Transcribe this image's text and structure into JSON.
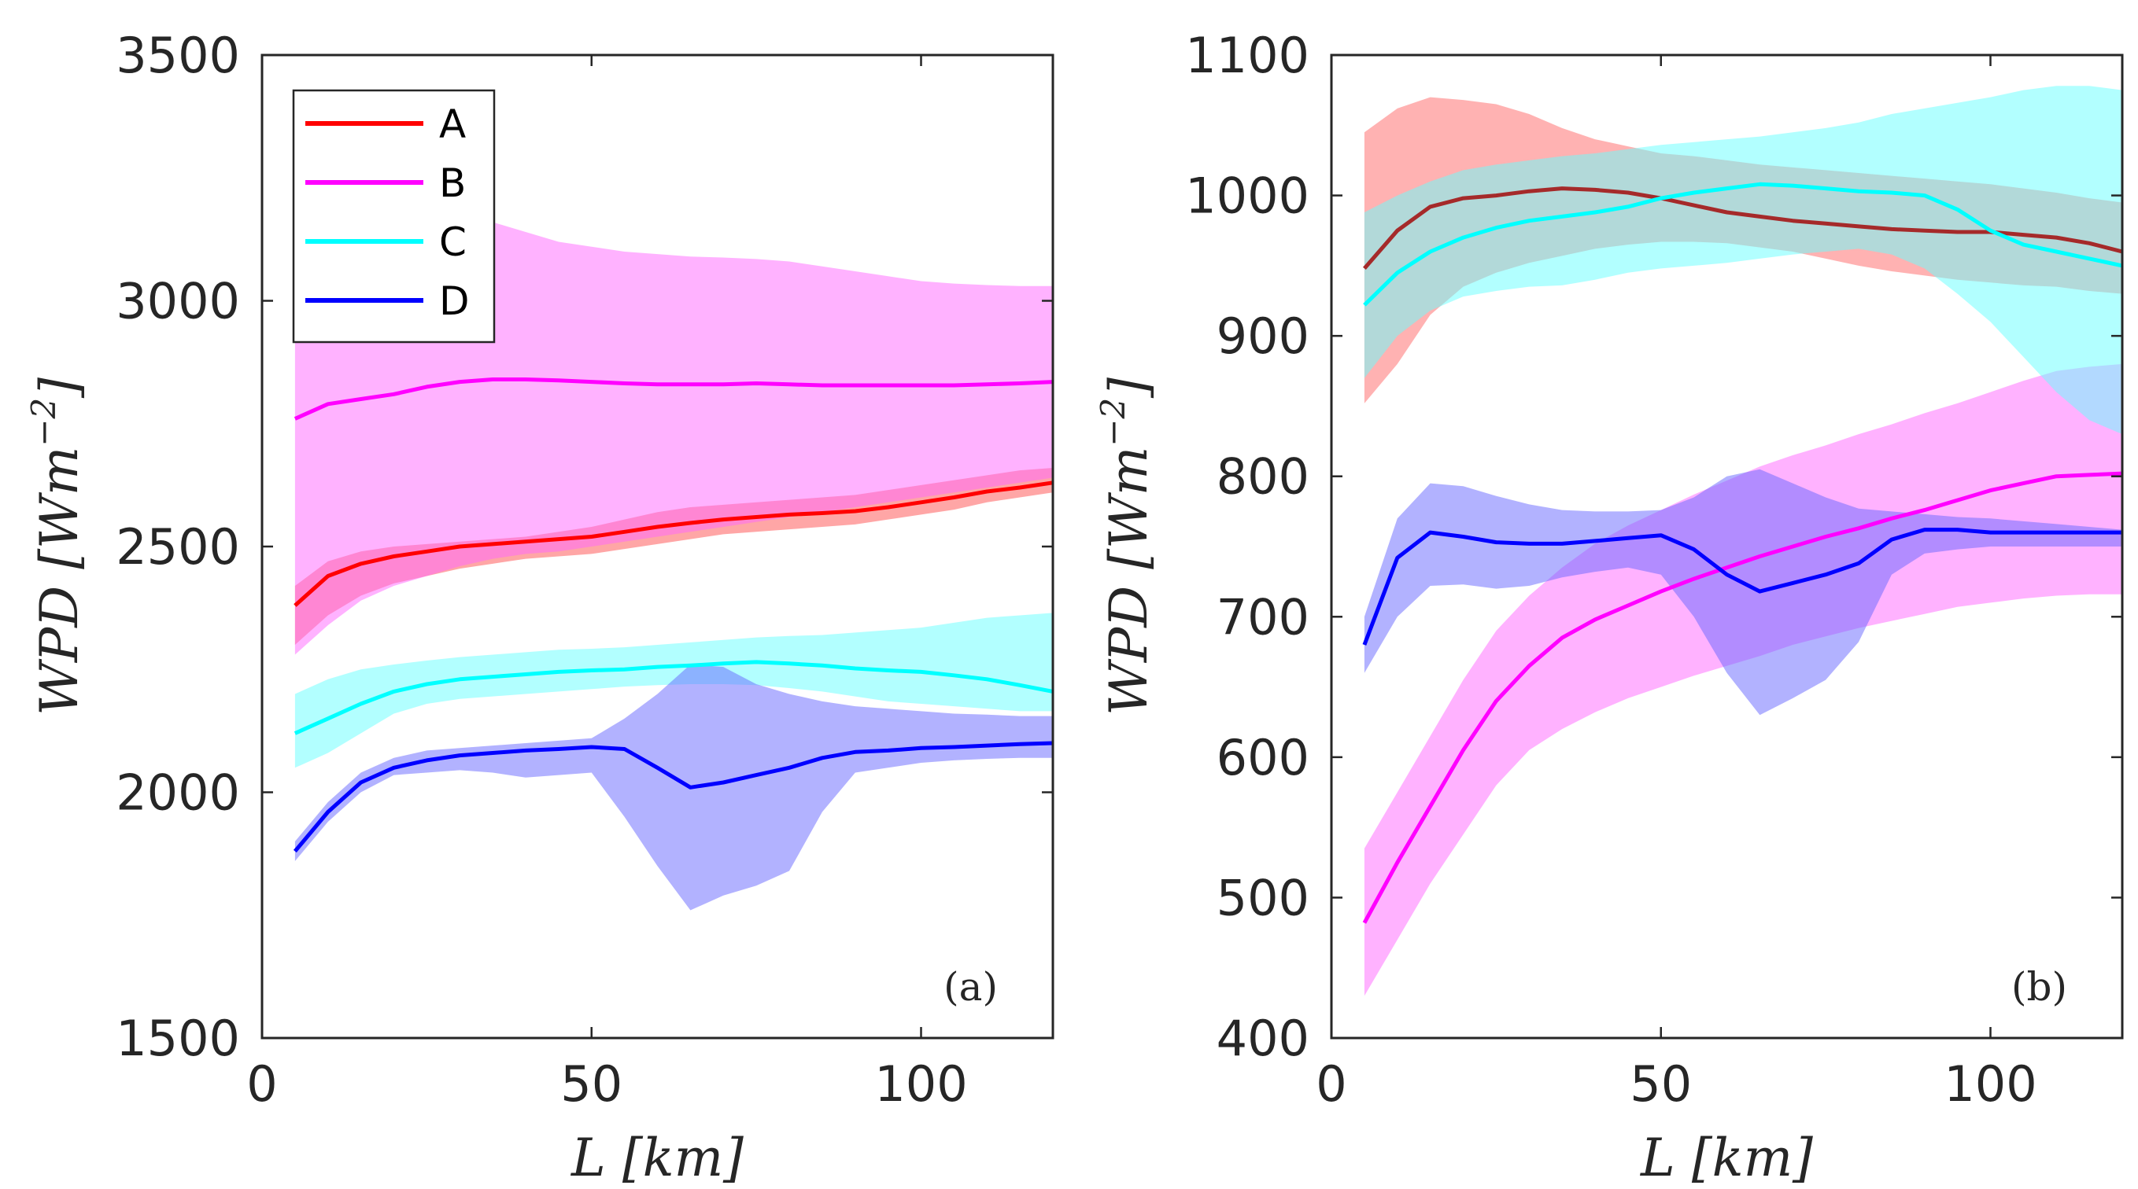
{
  "chart_data": [
    {
      "type": "area",
      "panel": "(a)",
      "xlabel": "L [km]",
      "ylabel": "WPD [Wm^-2]",
      "ylabel_parts": [
        "WPD [Wm",
        "−2",
        "]"
      ],
      "xlabel_parts": [
        "L [km]"
      ],
      "xlim": [
        0,
        120
      ],
      "ylim": [
        1500,
        3500
      ],
      "xticks": [
        0,
        50,
        100
      ],
      "xtick_labels": [
        "0",
        "50",
        "100"
      ],
      "yticks": [
        1500,
        2000,
        2500,
        3000,
        3500
      ],
      "ytick_labels": [
        "1500",
        "2000",
        "2500",
        "3000",
        "3500"
      ],
      "legend": {
        "position": "top-left",
        "entries": [
          "A",
          "B",
          "C",
          "D"
        ]
      },
      "x": [
        5,
        10,
        15,
        20,
        25,
        30,
        35,
        40,
        45,
        50,
        55,
        60,
        65,
        70,
        75,
        80,
        85,
        90,
        95,
        100,
        105,
        110,
        115,
        120
      ],
      "series": [
        {
          "name": "A",
          "color": "#ff0000",
          "band_color": "#ff4d4d",
          "values": [
            2380,
            2440,
            2465,
            2480,
            2490,
            2500,
            2505,
            2510,
            2515,
            2520,
            2530,
            2540,
            2548,
            2555,
            2560,
            2565,
            2568,
            2572,
            2580,
            2590,
            2600,
            2612,
            2620,
            2630
          ],
          "lower": [
            2300,
            2360,
            2400,
            2425,
            2440,
            2455,
            2465,
            2475,
            2480,
            2485,
            2495,
            2505,
            2515,
            2525,
            2530,
            2535,
            2540,
            2545,
            2555,
            2565,
            2575,
            2590,
            2600,
            2610
          ],
          "upper": [
            2420,
            2470,
            2490,
            2500,
            2505,
            2510,
            2515,
            2520,
            2530,
            2540,
            2555,
            2570,
            2580,
            2585,
            2590,
            2595,
            2600,
            2605,
            2615,
            2625,
            2635,
            2645,
            2655,
            2660
          ]
        },
        {
          "name": "B",
          "color": "#ff00ff",
          "band_color": "#ff66ff",
          "values": [
            2760,
            2790,
            2800,
            2810,
            2825,
            2835,
            2840,
            2840,
            2838,
            2835,
            2832,
            2830,
            2830,
            2830,
            2832,
            2830,
            2828,
            2828,
            2828,
            2828,
            2828,
            2830,
            2832,
            2835
          ],
          "lower": [
            2280,
            2340,
            2390,
            2420,
            2440,
            2460,
            2475,
            2485,
            2490,
            2500,
            2510,
            2520,
            2530,
            2540,
            2550,
            2560,
            2570,
            2580,
            2590,
            2600,
            2610,
            2620,
            2630,
            2640
          ],
          "upper": [
            2950,
            3050,
            3100,
            3130,
            3145,
            3155,
            3160,
            3140,
            3120,
            3110,
            3100,
            3095,
            3090,
            3088,
            3085,
            3080,
            3070,
            3060,
            3050,
            3040,
            3035,
            3032,
            3030,
            3030
          ]
        },
        {
          "name": "C",
          "color": "#00ffff",
          "band_color": "#66ffff",
          "values": [
            2120,
            2150,
            2180,
            2205,
            2220,
            2230,
            2235,
            2240,
            2245,
            2248,
            2250,
            2255,
            2258,
            2262,
            2265,
            2262,
            2258,
            2252,
            2248,
            2245,
            2238,
            2230,
            2218,
            2205
          ],
          "lower": [
            2050,
            2080,
            2120,
            2160,
            2180,
            2190,
            2195,
            2200,
            2205,
            2210,
            2215,
            2218,
            2220,
            2220,
            2218,
            2212,
            2205,
            2195,
            2185,
            2180,
            2175,
            2170,
            2165,
            2165
          ],
          "upper": [
            2200,
            2230,
            2250,
            2260,
            2268,
            2275,
            2280,
            2285,
            2290,
            2292,
            2295,
            2300,
            2305,
            2310,
            2315,
            2318,
            2320,
            2325,
            2330,
            2335,
            2345,
            2355,
            2360,
            2365
          ]
        },
        {
          "name": "D",
          "color": "#0000ff",
          "band_color": "#6666ff",
          "values": [
            1880,
            1960,
            2020,
            2050,
            2065,
            2075,
            2080,
            2085,
            2088,
            2092,
            2088,
            2050,
            2010,
            2020,
            2035,
            2050,
            2070,
            2082,
            2085,
            2090,
            2092,
            2095,
            2098,
            2100
          ],
          "lower": [
            1860,
            1940,
            2000,
            2035,
            2040,
            2045,
            2040,
            2030,
            2035,
            2040,
            1950,
            1850,
            1760,
            1790,
            1810,
            1840,
            1960,
            2040,
            2050,
            2060,
            2065,
            2068,
            2070,
            2070
          ],
          "upper": [
            1900,
            1980,
            2040,
            2070,
            2085,
            2090,
            2095,
            2100,
            2105,
            2110,
            2150,
            2200,
            2260,
            2255,
            2220,
            2200,
            2185,
            2175,
            2170,
            2165,
            2160,
            2158,
            2155,
            2155
          ]
        }
      ]
    },
    {
      "type": "area",
      "panel": "(b)",
      "xlabel": "L [km]",
      "ylabel": "WPD [Wm^-2]",
      "ylabel_parts": [
        "WPD [Wm",
        "−2",
        "]"
      ],
      "xlabel_parts": [
        "L [km]"
      ],
      "xlim": [
        0,
        120
      ],
      "ylim": [
        400,
        1100
      ],
      "xticks": [
        0,
        50,
        100
      ],
      "xtick_labels": [
        "0",
        "50",
        "100"
      ],
      "yticks": [
        400,
        500,
        600,
        700,
        800,
        900,
        1000,
        1100
      ],
      "ytick_labels": [
        "400",
        "500",
        "600",
        "700",
        "800",
        "900",
        "1000",
        "1100"
      ],
      "x": [
        5,
        10,
        15,
        20,
        25,
        30,
        35,
        40,
        45,
        50,
        55,
        60,
        65,
        70,
        75,
        80,
        85,
        90,
        95,
        100,
        105,
        110,
        115,
        120
      ],
      "series": [
        {
          "name": "A",
          "color": "#a52a2a",
          "band_color": "#ff6666",
          "values": [
            948,
            975,
            992,
            998,
            1000,
            1003,
            1005,
            1004,
            1002,
            998,
            993,
            988,
            985,
            982,
            980,
            978,
            976,
            975,
            974,
            974,
            972,
            970,
            966,
            960
          ],
          "lower": [
            852,
            880,
            915,
            935,
            945,
            952,
            957,
            962,
            965,
            967,
            967,
            966,
            963,
            960,
            955,
            950,
            946,
            943,
            940,
            938,
            936,
            935,
            932,
            930
          ],
          "upper": [
            1045,
            1062,
            1070,
            1068,
            1065,
            1058,
            1048,
            1040,
            1035,
            1030,
            1028,
            1025,
            1022,
            1020,
            1018,
            1016,
            1014,
            1012,
            1010,
            1008,
            1005,
            1002,
            998,
            995
          ]
        },
        {
          "name": "B",
          "color": "#ff00ff",
          "band_color": "#ff66ff",
          "values": [
            482,
            525,
            565,
            605,
            640,
            665,
            685,
            698,
            708,
            718,
            727,
            735,
            743,
            750,
            757,
            763,
            770,
            776,
            783,
            790,
            795,
            800,
            801,
            802
          ],
          "lower": [
            430,
            470,
            510,
            545,
            580,
            605,
            620,
            632,
            642,
            650,
            658,
            665,
            672,
            680,
            686,
            692,
            697,
            702,
            707,
            710,
            713,
            715,
            716,
            716
          ],
          "upper": [
            535,
            575,
            615,
            655,
            690,
            715,
            735,
            752,
            765,
            776,
            787,
            797,
            807,
            815,
            822,
            830,
            837,
            845,
            852,
            860,
            868,
            875,
            878,
            880
          ]
        },
        {
          "name": "C",
          "color": "#00ffff",
          "band_color": "#66ffff",
          "values": [
            922,
            945,
            960,
            970,
            977,
            982,
            985,
            988,
            992,
            998,
            1002,
            1005,
            1008,
            1007,
            1005,
            1003,
            1002,
            1000,
            990,
            975,
            965,
            960,
            955,
            950
          ],
          "lower": [
            870,
            900,
            918,
            928,
            932,
            935,
            936,
            940,
            945,
            948,
            950,
            952,
            955,
            958,
            960,
            962,
            958,
            948,
            930,
            910,
            885,
            860,
            840,
            830
          ],
          "upper": [
            988,
            1000,
            1010,
            1018,
            1022,
            1025,
            1028,
            1030,
            1033,
            1036,
            1038,
            1040,
            1042,
            1045,
            1048,
            1052,
            1058,
            1062,
            1066,
            1070,
            1075,
            1078,
            1078,
            1075
          ]
        },
        {
          "name": "D",
          "color": "#0000ff",
          "band_color": "#6666ff",
          "values": [
            680,
            742,
            760,
            757,
            753,
            752,
            752,
            754,
            756,
            758,
            748,
            730,
            718,
            724,
            730,
            738,
            755,
            762,
            762,
            760,
            760,
            760,
            760,
            760
          ],
          "lower": [
            660,
            700,
            722,
            723,
            720,
            722,
            728,
            732,
            735,
            730,
            700,
            660,
            630,
            642,
            655,
            682,
            730,
            745,
            748,
            750,
            750,
            750,
            750,
            750
          ],
          "upper": [
            700,
            770,
            795,
            793,
            786,
            780,
            776,
            775,
            775,
            776,
            785,
            800,
            805,
            795,
            785,
            777,
            775,
            773,
            771,
            770,
            768,
            766,
            764,
            762
          ]
        }
      ]
    }
  ]
}
